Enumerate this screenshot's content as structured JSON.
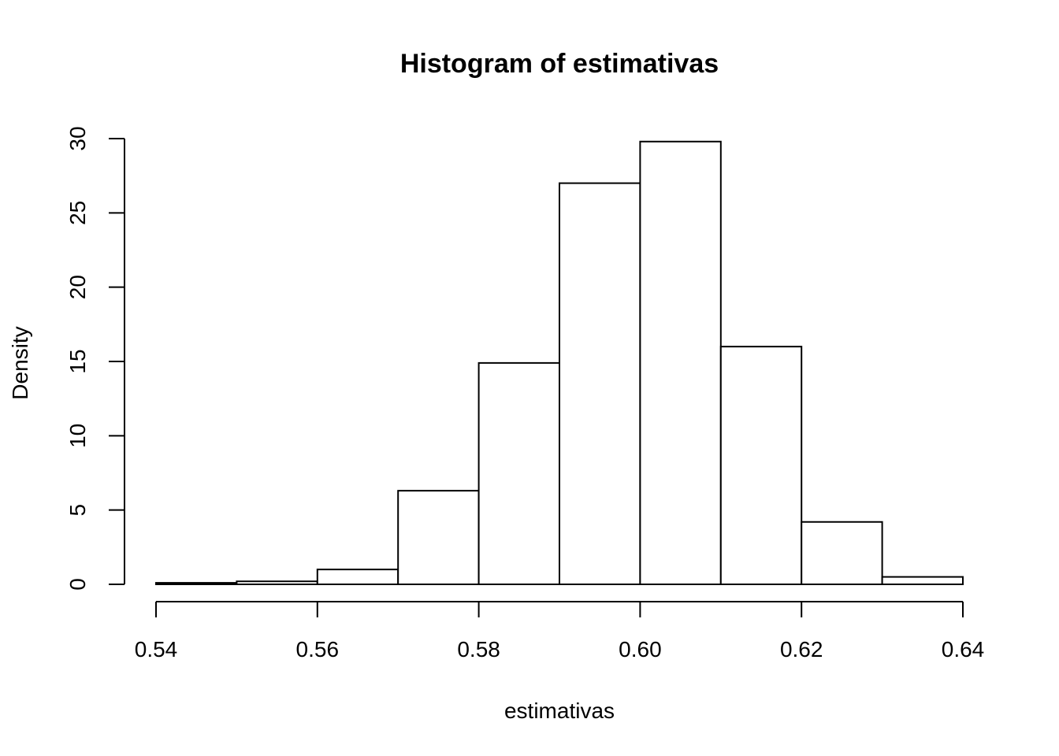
{
  "chart_data": {
    "type": "bar",
    "title": "Histogram of estimativas",
    "xlabel": "estimativas",
    "ylabel": "Density",
    "bin_edges": [
      0.54,
      0.55,
      0.56,
      0.57,
      0.58,
      0.59,
      0.6,
      0.61,
      0.62,
      0.63,
      0.64
    ],
    "values": [
      0.1,
      0.2,
      1.0,
      6.3,
      14.9,
      27.0,
      29.8,
      16.0,
      4.2,
      0.5
    ],
    "xlim": [
      0.54,
      0.64
    ],
    "ylim": [
      0,
      30
    ],
    "x_ticks": [
      "0.54",
      "0.56",
      "0.58",
      "0.60",
      "0.62",
      "0.64"
    ],
    "y_ticks": [
      "0",
      "5",
      "10",
      "15",
      "20",
      "25",
      "30"
    ],
    "grid": false,
    "colors": {
      "bar_fill": "#ffffff",
      "bar_stroke": "#000000",
      "background": "#ffffff"
    }
  }
}
